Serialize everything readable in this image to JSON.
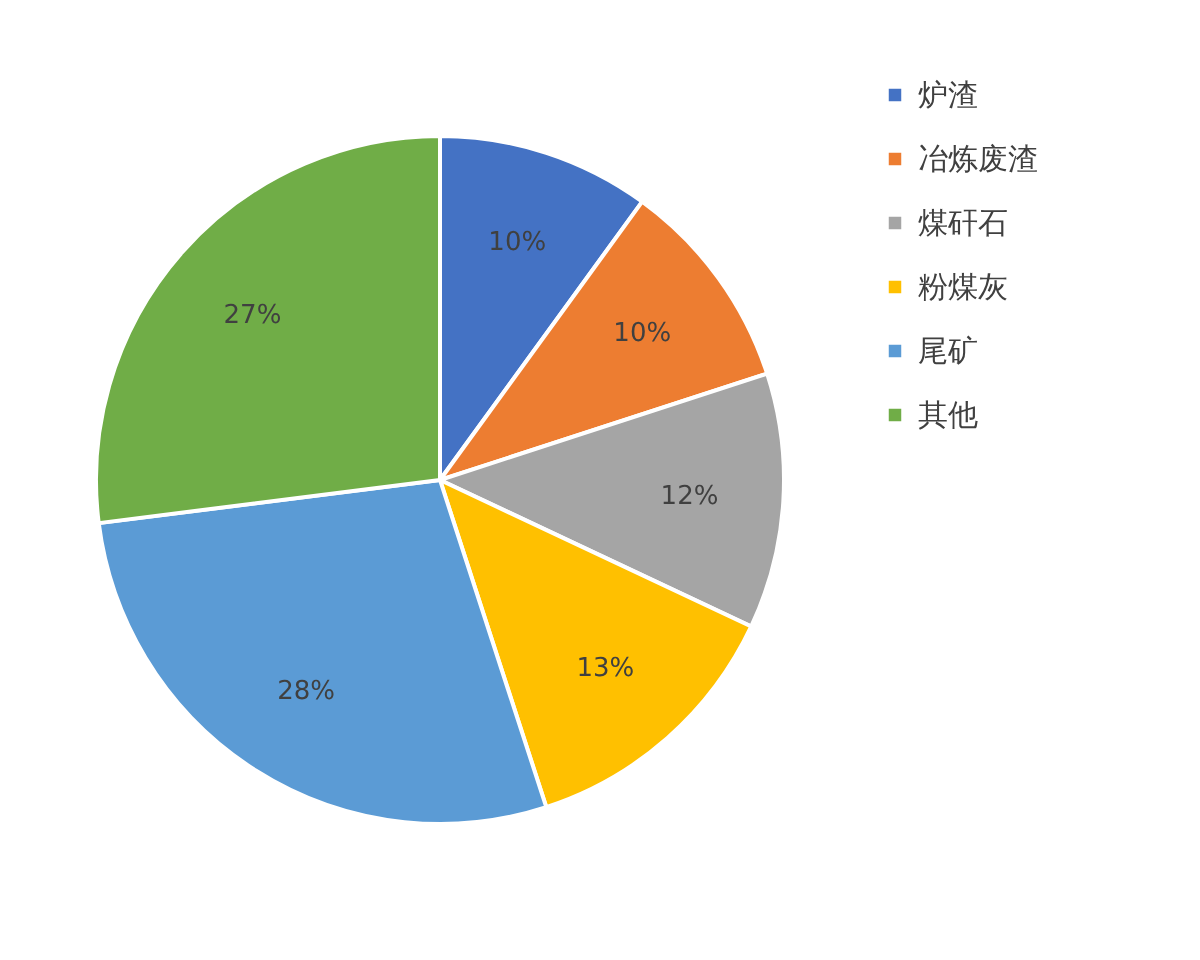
{
  "chart_data": {
    "type": "pie",
    "categories": [
      "炉渣",
      "冶炼废渣",
      "煤矸石",
      "粉煤灰",
      "尾矿",
      "其他"
    ],
    "values": [
      10,
      10,
      12,
      13,
      28,
      27
    ],
    "colors": [
      "#4472c4",
      "#ed7d31",
      "#a5a5a5",
      "#ffc000",
      "#5b9bd5",
      "#70ad47"
    ],
    "value_labels": [
      "10%",
      "10%",
      "12%",
      "13%",
      "28%",
      "27%"
    ],
    "legend": "right"
  }
}
